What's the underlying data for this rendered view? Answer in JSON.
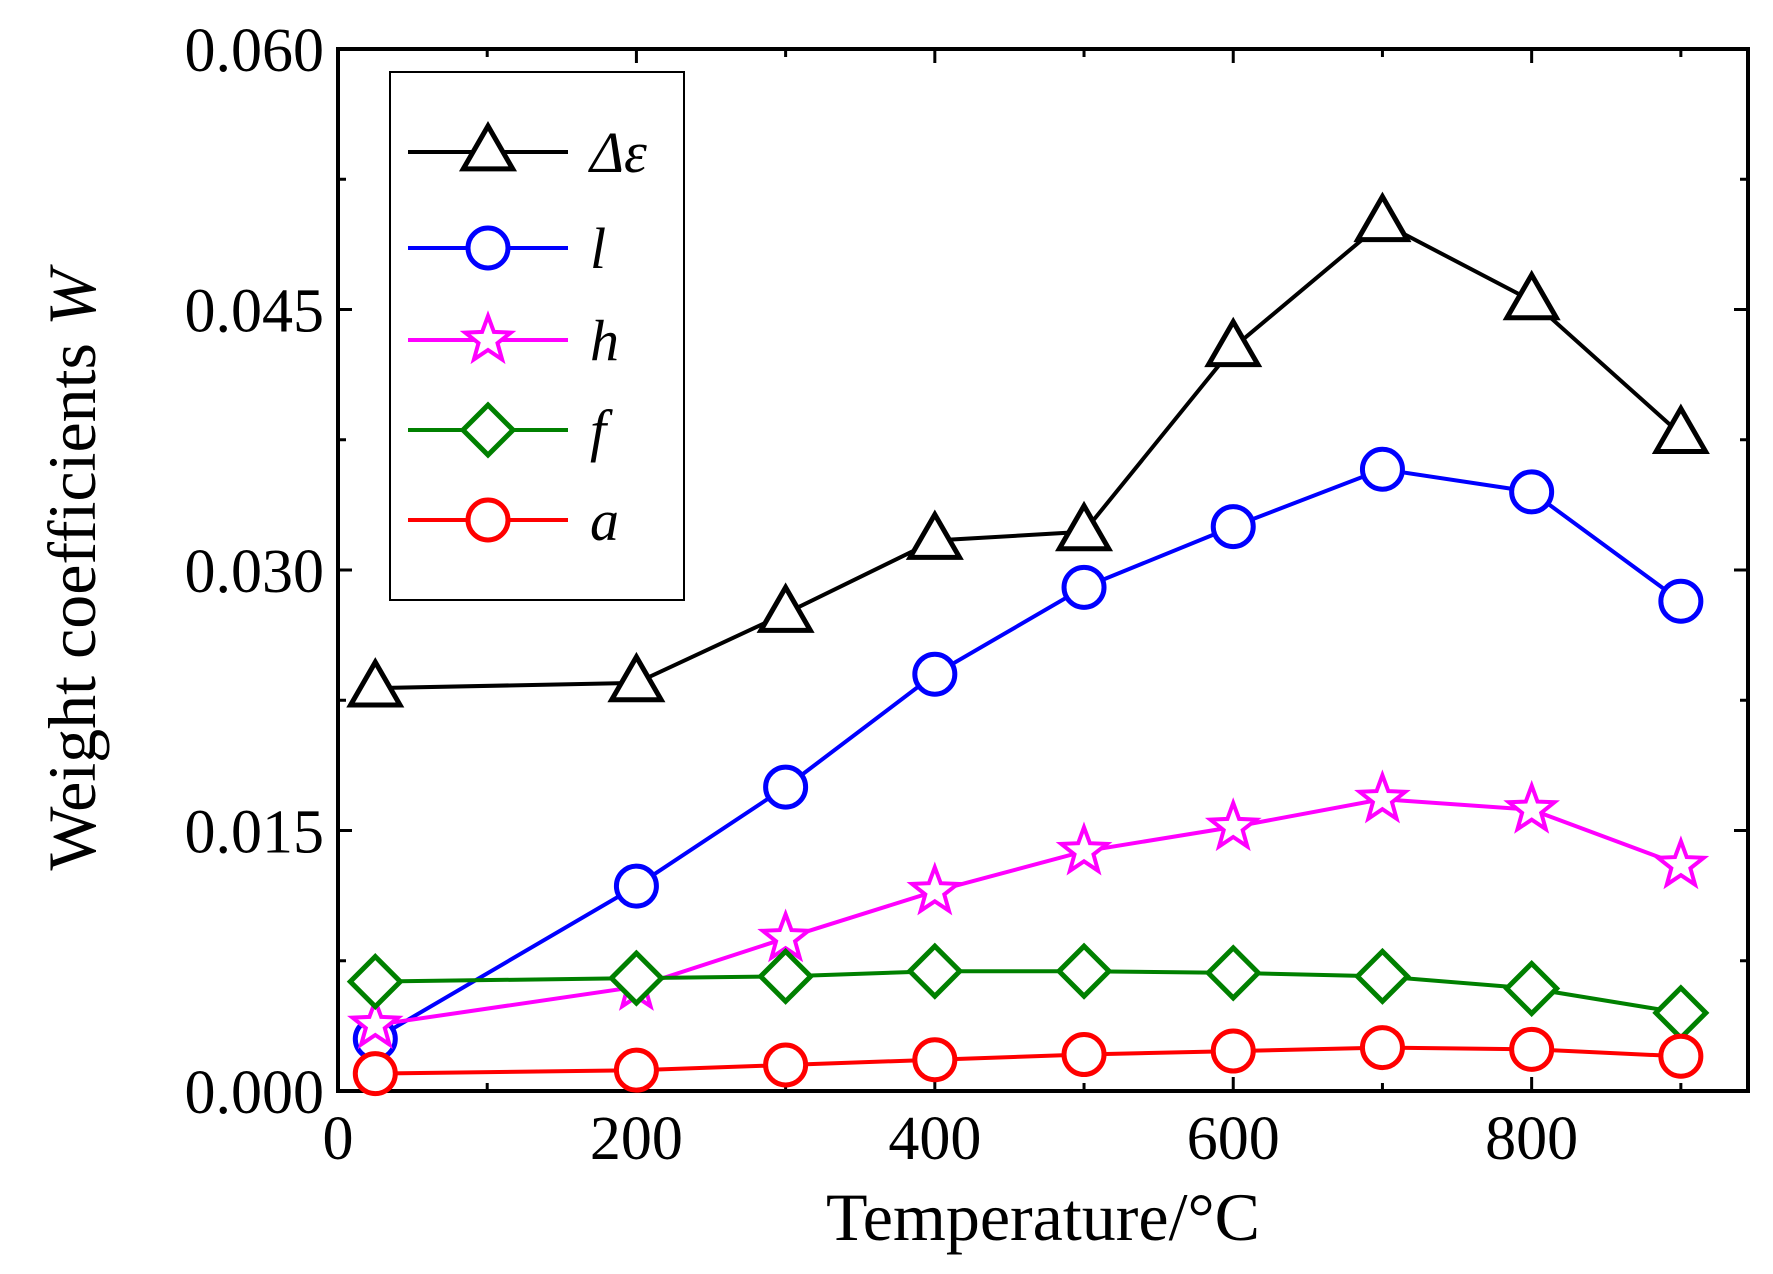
{
  "chart_data": {
    "type": "line",
    "title": "",
    "xlabel": "Temperature/°C",
    "ylabel_prefix": "Weight coefficients ",
    "ylabel_symbol": "W",
    "xlim": [
      0,
      945
    ],
    "ylim": [
      0,
      0.06
    ],
    "xticks": [
      0,
      200,
      400,
      600,
      800
    ],
    "yticks": [
      0,
      0.015,
      0.03,
      0.045,
      0.06
    ],
    "xtick_labels": [
      "0",
      "200",
      "400",
      "600",
      "800"
    ],
    "ytick_labels": [
      "0.000",
      "0.015",
      "0.030",
      "0.045",
      "0.060"
    ],
    "x": [
      25,
      200,
      300,
      400,
      500,
      600,
      700,
      800,
      900
    ],
    "legend_position": "top-left",
    "series": [
      {
        "name": "Δε",
        "color": "#000000",
        "marker": "triangle",
        "values": [
          0.0232,
          0.0235,
          0.0275,
          0.0317,
          0.0322,
          0.0428,
          0.05,
          0.0455,
          0.0378
        ]
      },
      {
        "name": "l",
        "color": "#0000ff",
        "marker": "circle",
        "values": [
          0.003,
          0.0118,
          0.0175,
          0.024,
          0.029,
          0.0325,
          0.0358,
          0.0345,
          0.0282
        ]
      },
      {
        "name": "h",
        "color": "#ff00ff",
        "marker": "star",
        "values": [
          0.0038,
          0.006,
          0.0088,
          0.0115,
          0.0138,
          0.0152,
          0.0168,
          0.0162,
          0.013
        ]
      },
      {
        "name": "f",
        "color": "#008000",
        "marker": "diamond",
        "values": [
          0.0063,
          0.0065,
          0.0066,
          0.0069,
          0.0069,
          0.0068,
          0.0066,
          0.0059,
          0.0045
        ]
      },
      {
        "name": "a",
        "color": "#ff0000",
        "marker": "circle",
        "values": [
          0.001,
          0.0012,
          0.0015,
          0.0018,
          0.0021,
          0.0023,
          0.0025,
          0.0024,
          0.002
        ]
      }
    ]
  }
}
